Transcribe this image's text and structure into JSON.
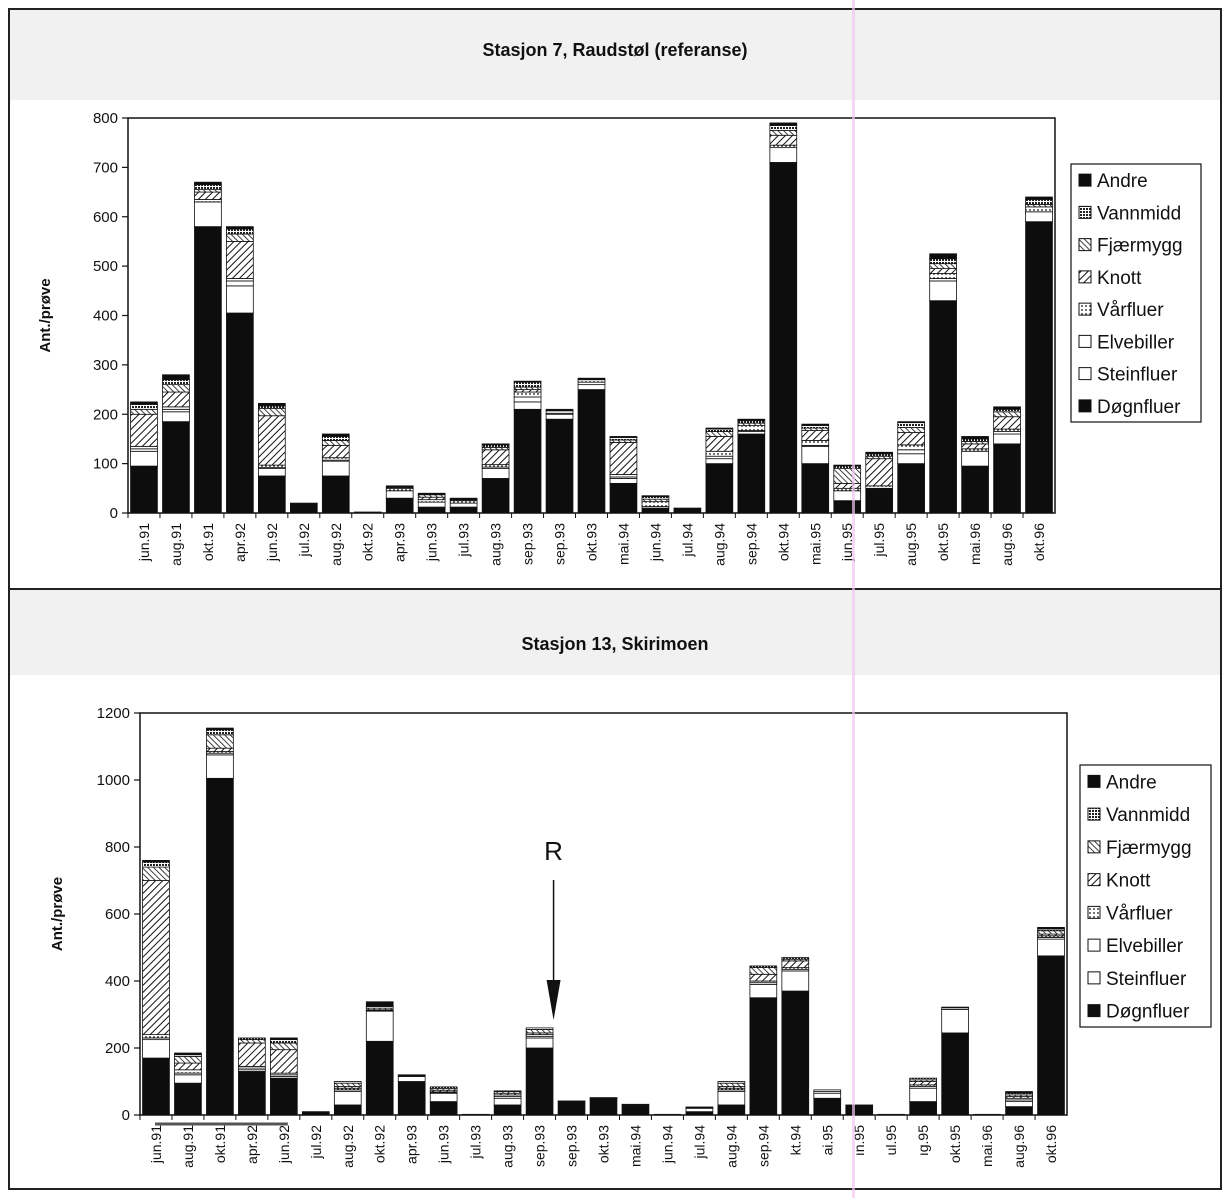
{
  "chart_data": [
    {
      "type": "bar",
      "stacked": true,
      "title": "Stasjon 7, Raudstøl (referanse)",
      "ylabel": "Ant./prøve",
      "xlabel": "",
      "ylim": [
        0,
        800
      ],
      "yticks": [
        0,
        100,
        200,
        300,
        400,
        500,
        600,
        700,
        800
      ],
      "legend_position": "right",
      "categories": [
        "jun.91",
        "aug.91",
        "okt.91",
        "apr.92",
        "jun.92",
        "jul.92",
        "aug.92",
        "okt.92",
        "apr.93",
        "jun.93",
        "jul.93",
        "aug.93",
        "sep.93",
        "sep.93",
        "okt.93",
        "mai.94",
        "jun.94",
        "jul.94",
        "aug.94",
        "sep.94",
        "okt.94",
        "mai.95",
        "jun.95",
        "jul.95",
        "aug.95",
        "okt.95",
        "mai.96",
        "aug.96",
        "okt.96"
      ],
      "series": [
        {
          "name": "Døgnfluer",
          "values": [
            95,
            185,
            580,
            405,
            75,
            18,
            75,
            2,
            30,
            12,
            12,
            70,
            210,
            190,
            250,
            60,
            10,
            8,
            100,
            160,
            710,
            100,
            25,
            50,
            100,
            430,
            95,
            140,
            590
          ]
        },
        {
          "name": "Steinfluer",
          "values": [
            30,
            20,
            50,
            55,
            15,
            0,
            30,
            0,
            15,
            10,
            8,
            20,
            15,
            10,
            10,
            10,
            3,
            0,
            10,
            5,
            30,
            35,
            20,
            0,
            20,
            40,
            30,
            20,
            20
          ]
        },
        {
          "name": "Elvebiller",
          "values": [
            5,
            5,
            0,
            10,
            2,
            0,
            2,
            0,
            0,
            0,
            0,
            3,
            10,
            2,
            5,
            3,
            0,
            0,
            5,
            2,
            0,
            2,
            0,
            0,
            8,
            5,
            0,
            5,
            0
          ]
        },
        {
          "name": "Vårfluer",
          "values": [
            5,
            5,
            5,
            5,
            5,
            0,
            5,
            0,
            5,
            5,
            5,
            5,
            10,
            5,
            5,
            5,
            10,
            0,
            10,
            10,
            5,
            10,
            5,
            5,
            10,
            10,
            5,
            5,
            10
          ]
        },
        {
          "name": "Knott",
          "values": [
            65,
            30,
            15,
            75,
            100,
            0,
            25,
            0,
            0,
            5,
            0,
            30,
            5,
            0,
            0,
            65,
            0,
            0,
            30,
            0,
            20,
            20,
            10,
            55,
            25,
            10,
            10,
            25,
            0
          ]
        },
        {
          "name": "Fjærmygg",
          "values": [
            10,
            15,
            5,
            15,
            15,
            0,
            10,
            0,
            0,
            5,
            0,
            5,
            5,
            0,
            0,
            5,
            5,
            0,
            10,
            5,
            10,
            5,
            30,
            5,
            10,
            10,
            5,
            10,
            5
          ]
        },
        {
          "name": "Vannmidd",
          "values": [
            10,
            10,
            10,
            10,
            5,
            0,
            8,
            0,
            2,
            0,
            2,
            5,
            10,
            0,
            0,
            5,
            5,
            0,
            5,
            5,
            10,
            5,
            5,
            5,
            10,
            10,
            5,
            5,
            10
          ]
        },
        {
          "name": "Andre",
          "values": [
            5,
            10,
            5,
            5,
            5,
            2,
            5,
            0,
            3,
            3,
            3,
            2,
            2,
            3,
            3,
            2,
            2,
            2,
            2,
            3,
            5,
            3,
            2,
            3,
            2,
            10,
            5,
            5,
            5
          ]
        }
      ]
    },
    {
      "type": "bar",
      "stacked": true,
      "title": "Stasjon 13, Skirimoen",
      "ylabel": "Ant./prøve",
      "xlabel": "",
      "ylim": [
        0,
        1200
      ],
      "yticks": [
        0,
        200,
        400,
        600,
        800,
        1000,
        1200
      ],
      "legend_position": "right",
      "annotation": {
        "text": "R",
        "category_index": 12
      },
      "categories": [
        "jun.91",
        "aug.91",
        "okt.91",
        "apr.92",
        "jun.92",
        "jul.92",
        "aug.92",
        "okt.92",
        "apr.93",
        "jun.93",
        "jul.93",
        "aug.93",
        "sep.93",
        "sep.93",
        "okt.93",
        "mai.94",
        "jun.94",
        "jul.94",
        "aug.94",
        "sep.94",
        "kt.94",
        "ai.95",
        "ın.95",
        "ul.95",
        "ıg.95",
        "okt.95",
        "mai.96",
        "aug.96",
        "okt.96"
      ],
      "series": [
        {
          "name": "Døgnfluer",
          "values": [
            170,
            95,
            1005,
            130,
            110,
            10,
            30,
            220,
            100,
            40,
            2,
            30,
            200,
            40,
            50,
            30,
            2,
            10,
            30,
            350,
            370,
            50,
            30,
            2,
            40,
            245,
            2,
            25,
            475
          ]
        },
        {
          "name": "Steinfluer",
          "values": [
            55,
            25,
            70,
            5,
            5,
            0,
            40,
            90,
            15,
            25,
            0,
            20,
            30,
            2,
            2,
            2,
            0,
            10,
            40,
            40,
            60,
            15,
            0,
            0,
            40,
            70,
            0,
            15,
            50
          ]
        },
        {
          "name": "Elvebiller",
          "values": [
            5,
            5,
            5,
            5,
            5,
            0,
            5,
            2,
            2,
            2,
            0,
            5,
            5,
            0,
            0,
            0,
            0,
            2,
            5,
            5,
            5,
            5,
            0,
            0,
            5,
            5,
            0,
            5,
            5
          ]
        },
        {
          "name": "Vårfluer",
          "values": [
            10,
            10,
            5,
            5,
            5,
            0,
            5,
            2,
            2,
            2,
            0,
            5,
            5,
            0,
            0,
            0,
            0,
            2,
            5,
            5,
            5,
            5,
            0,
            0,
            5,
            2,
            0,
            5,
            5
          ]
        },
        {
          "name": "Knott",
          "values": [
            460,
            20,
            10,
            70,
            70,
            0,
            5,
            0,
            0,
            5,
            0,
            5,
            5,
            0,
            0,
            0,
            0,
            0,
            5,
            20,
            20,
            0,
            0,
            0,
            10,
            0,
            0,
            5,
            5
          ]
        },
        {
          "name": "Fjærmygg",
          "values": [
            40,
            20,
            40,
            10,
            20,
            0,
            10,
            5,
            0,
            5,
            0,
            5,
            10,
            0,
            0,
            0,
            0,
            0,
            10,
            20,
            5,
            0,
            0,
            0,
            5,
            0,
            0,
            5,
            10
          ]
        },
        {
          "name": "Vannmidd",
          "values": [
            15,
            5,
            15,
            5,
            10,
            0,
            5,
            5,
            0,
            5,
            0,
            2,
            5,
            0,
            0,
            0,
            0,
            0,
            5,
            5,
            5,
            0,
            0,
            0,
            5,
            0,
            0,
            5,
            5
          ]
        },
        {
          "name": "Andre",
          "values": [
            5,
            5,
            5,
            0,
            5,
            0,
            0,
            14,
            1,
            0,
            0,
            0,
            0,
            0,
            0,
            0,
            0,
            0,
            0,
            0,
            0,
            0,
            0,
            0,
            0,
            0,
            0,
            5,
            5
          ]
        }
      ]
    }
  ],
  "legend_top": [
    "Andre",
    "Vannmidd",
    "Fjærmygg",
    "Knott",
    "Vårfluer",
    "Elvebiller",
    "Steinfluer",
    "Døgnfluer"
  ],
  "legend_bottom": [
    "Andre",
    "Vannmidd",
    "Fjærmygg",
    "Knott",
    "Vårfluer",
    "Elvebiller",
    "Steinfluer",
    "Døgnfluer"
  ],
  "colors": {
    "Døgnfluer": "#0d0d0d",
    "Steinfluer": "#ffffff",
    "Elvebiller": "#ffffff",
    "Vårfluer": "#ffffff",
    "Knott": "#9a9a9a",
    "Fjærmygg": "#bdbdbd",
    "Vannmidd": "#6e6e6e",
    "Andre": "#0d0d0d"
  }
}
